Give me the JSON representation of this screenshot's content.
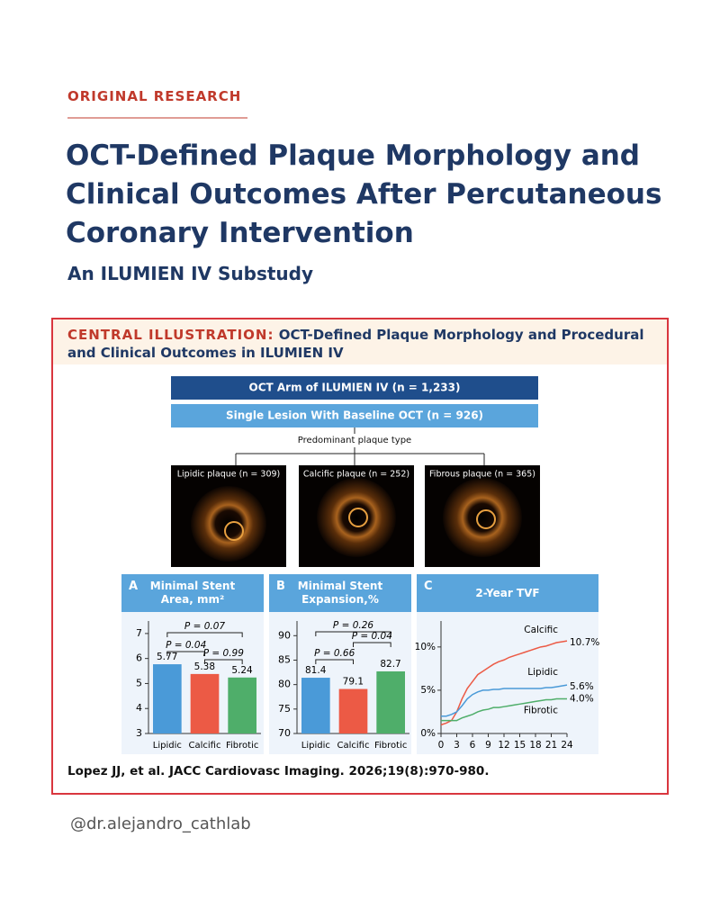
{
  "header": {
    "label": "ORIGINAL RESEARCH",
    "title": "OCT-Defined Plaque Morphology and Clinical Outcomes After Percutaneous Coronary Intervention",
    "subtitle": "An ILUMIEN IV Substudy"
  },
  "illustration": {
    "label": "CENTRAL ILLUSTRATION:",
    "heading": "OCT-Defined Plaque Morphology and Procedural and Clinical Outcomes in ILUMIEN IV",
    "flow": {
      "cohort": "OCT Arm of ILUMIEN IV (n = 1,233)",
      "subset": "Single Lesion With Baseline OCT (n = 926)",
      "branch_label": "Predominant plaque type",
      "groups": [
        "Lipidic plaque (n = 309)",
        "Calcific plaque (n = 252)",
        "Fibrous plaque (n = 365)"
      ]
    },
    "panels": [
      {
        "type": "bar",
        "letter": "A",
        "title": "Minimal Stent Area, mm²",
        "categories": [
          "Lipidic",
          "Calcific",
          "Fibrotic"
        ],
        "values": [
          5.77,
          5.38,
          5.24
        ],
        "colors": [
          "#4a9ad8",
          "#ec5a45",
          "#4fae6a"
        ],
        "ylim": [
          3,
          7.5
        ],
        "yticks": [
          3,
          4,
          5,
          6,
          7
        ],
        "comparisons": [
          "P = 0.07",
          "P = 0.04",
          "P = 0.99"
        ]
      },
      {
        "type": "bar",
        "letter": "B",
        "title": "Minimal Stent Expansion,%",
        "categories": [
          "Lipidic",
          "Calcific",
          "Fibrotic"
        ],
        "values": [
          81.4,
          79.1,
          82.7
        ],
        "colors": [
          "#4a9ad8",
          "#ec5a45",
          "#4fae6a"
        ],
        "ylim": [
          70,
          93
        ],
        "yticks": [
          70,
          75,
          80,
          85,
          90
        ],
        "comparisons": [
          "P = 0.26",
          "P = 0.04",
          "P = 0.66"
        ]
      },
      {
        "type": "line",
        "letter": "C",
        "title": "2-Year TVF",
        "xlim": [
          0,
          24
        ],
        "xticks": [
          0,
          3,
          6,
          9,
          12,
          15,
          18,
          21,
          24
        ],
        "ylim": [
          0,
          13
        ],
        "yticks": [
          {
            "value": 0,
            "label": "0%"
          },
          {
            "value": 5,
            "label": "5%"
          },
          {
            "value": 10,
            "label": "10%"
          }
        ],
        "x": [
          0,
          1,
          2,
          3,
          4,
          5,
          6,
          7,
          8,
          9,
          10,
          11,
          12,
          13,
          14,
          15,
          16,
          17,
          18,
          19,
          20,
          21,
          22,
          23,
          24
        ],
        "series": [
          {
            "name": "Calcific",
            "color": "#ec5a45",
            "end_label": "10.7%",
            "values": [
              1.0,
              1.2,
              1.5,
              2.5,
              4.0,
              5.2,
              6.0,
              6.8,
              7.2,
              7.6,
              8.0,
              8.3,
              8.5,
              8.8,
              9.0,
              9.2,
              9.4,
              9.6,
              9.8,
              10.0,
              10.1,
              10.3,
              10.5,
              10.6,
              10.7
            ]
          },
          {
            "name": "Lipidic",
            "color": "#4a9ad8",
            "end_label": "5.6%",
            "values": [
              2.0,
              2.0,
              2.2,
              2.5,
              3.2,
              4.0,
              4.5,
              4.8,
              5.0,
              5.0,
              5.1,
              5.1,
              5.2,
              5.2,
              5.2,
              5.2,
              5.2,
              5.2,
              5.2,
              5.2,
              5.3,
              5.3,
              5.4,
              5.5,
              5.6
            ]
          },
          {
            "name": "Fibrotic",
            "color": "#4fae6a",
            "end_label": "4.0%",
            "values": [
              1.5,
              1.5,
              1.5,
              1.5,
              1.8,
              2.0,
              2.2,
              2.5,
              2.7,
              2.8,
              3.0,
              3.0,
              3.1,
              3.2,
              3.3,
              3.4,
              3.5,
              3.6,
              3.7,
              3.8,
              3.9,
              3.9,
              4.0,
              4.0,
              4.0
            ]
          }
        ]
      }
    ],
    "citation": "Lopez JJ, et al. JACC Cardiovasc Imaging. 2026;19(8):970-980."
  },
  "footer": {
    "handle": "@dr.alejandro_cathlab"
  }
}
